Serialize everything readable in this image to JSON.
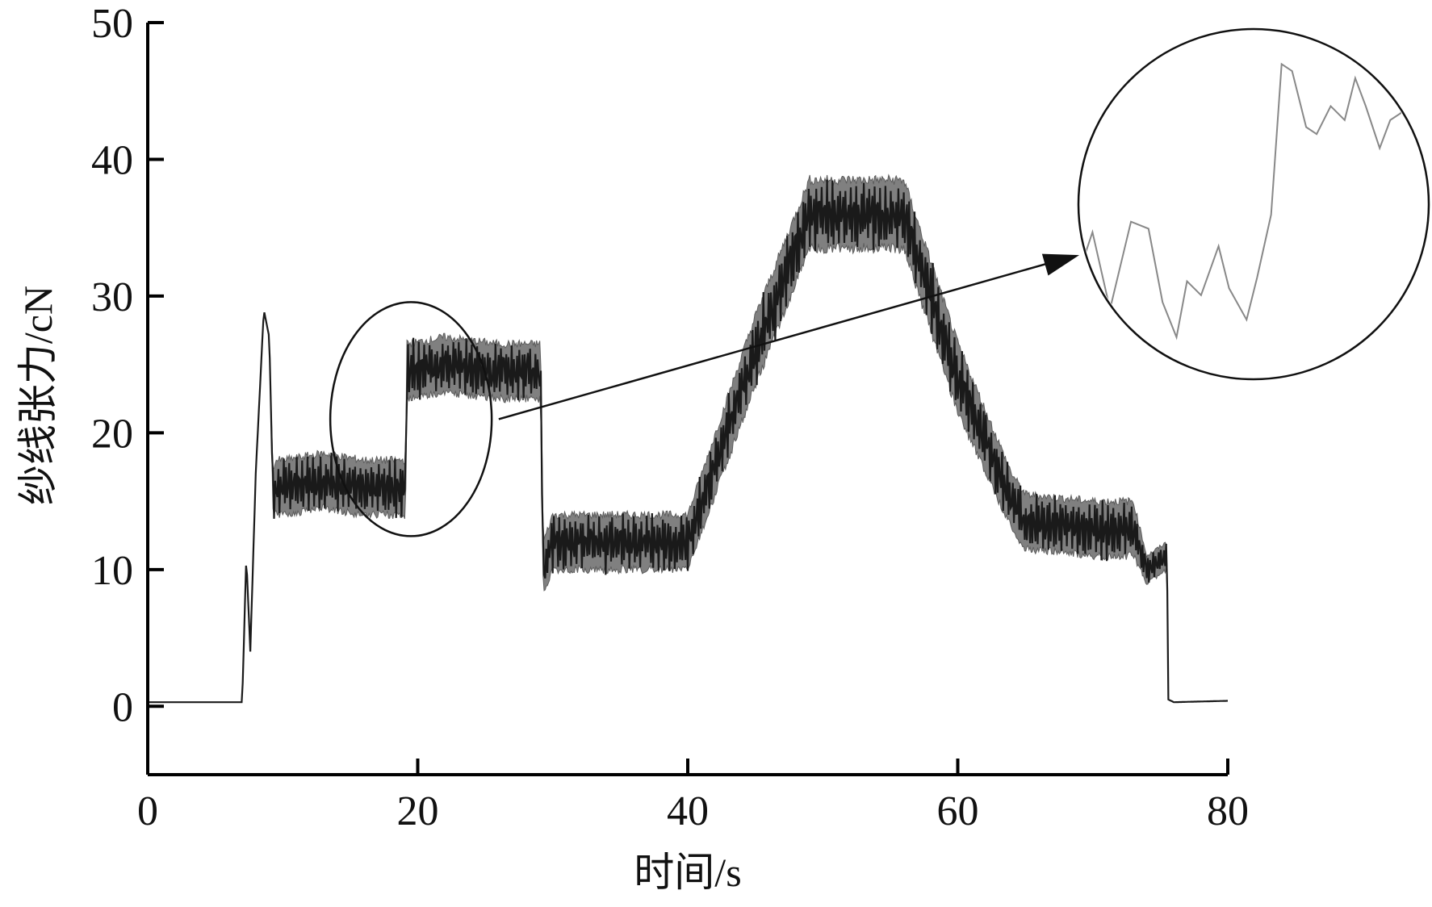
{
  "chart_data": {
    "type": "line",
    "title": "",
    "xlabel": "时间/s",
    "ylabel": "纱线张力/cN",
    "xlim": [
      0,
      80
    ],
    "ylim": [
      -5,
      50
    ],
    "x_ticks": [
      "0",
      "20",
      "40",
      "60",
      "80"
    ],
    "y_ticks": [
      "0",
      "10",
      "20",
      "30",
      "40",
      "50"
    ],
    "grid": false,
    "legend": "none",
    "colors": {
      "line": "#1a1a1a",
      "band": "#7a7a7a",
      "zoom": "#888888"
    },
    "series": [
      {
        "x": [
          0,
          7,
          7.3,
          7.6,
          8,
          8.6,
          9,
          9.3,
          9.4,
          10,
          13,
          16,
          19.1,
          19.2,
          22,
          26,
          29.1,
          29.3,
          30,
          35,
          40,
          45,
          49,
          53,
          56,
          60,
          64,
          65,
          70,
          73,
          74,
          75.5,
          75.6,
          76,
          80
        ],
        "y": [
          0.3,
          0.3,
          11,
          4,
          17,
          29,
          27,
          15,
          16,
          16,
          16.5,
          16,
          16,
          24.5,
          25,
          24.5,
          24.5,
          10,
          12,
          12,
          12,
          26,
          36,
          36,
          36,
          24,
          15,
          13.5,
          13,
          13,
          10,
          11,
          0.5,
          0.3,
          0.4
        ],
        "amplitude": [
          0,
          0,
          0,
          0,
          0,
          0,
          0,
          1.5,
          2,
          2,
          2,
          2,
          2,
          2,
          2,
          2,
          2,
          2,
          2,
          2,
          2,
          2.5,
          2.5,
          2.5,
          2.5,
          2.5,
          2,
          2,
          2,
          2,
          1,
          1,
          0,
          0,
          0
        ]
      }
    ],
    "annotations": [
      {
        "type": "ellipse",
        "center": [
          19.5,
          21
        ],
        "note": "highlighted region"
      },
      {
        "type": "arrow",
        "from": [
          26,
          21
        ],
        "to": [
          69,
          33
        ]
      },
      {
        "type": "circle-zoom",
        "note": "magnified detail of highlighted region"
      }
    ]
  }
}
